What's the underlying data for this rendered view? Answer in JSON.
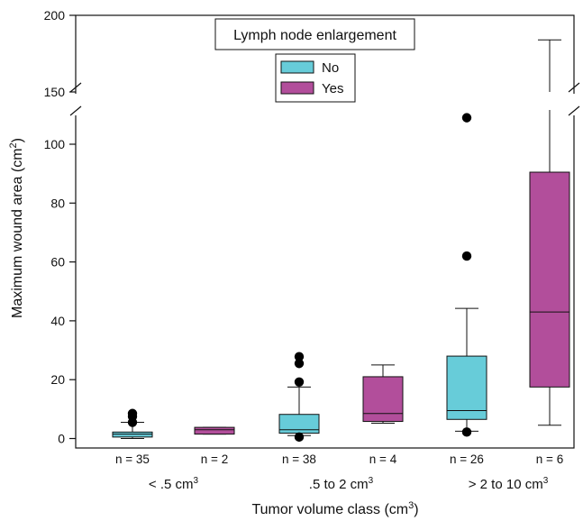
{
  "chart_data": {
    "type": "box",
    "title": "",
    "xlabel": "Tumor volume class (cm",
    "xlabel_sup": "3",
    "xlabel_end": ")",
    "ylabel": "Maximum wound area (cm",
    "ylabel_sup": "2",
    "ylabel_end": ")",
    "y_axis_break": {
      "lower_segment": [
        0,
        112
      ],
      "upper_segment": [
        148,
        200
      ]
    },
    "y_ticks": [
      0,
      20,
      40,
      60,
      80,
      100,
      150,
      200
    ],
    "legend": {
      "title": "Lymph node enlargement",
      "placement": "top-center",
      "entries": [
        {
          "name": "No",
          "color": "#67CCD9"
        },
        {
          "name": "Yes",
          "color": "#B24E9B"
        }
      ]
    },
    "groups": [
      {
        "label": "< .5 cm",
        "sup": "3"
      },
      {
        "label": ".5 to 2 cm",
        "sup": "3"
      },
      {
        "label": "> 2 to 10 cm",
        "sup": "3"
      }
    ],
    "boxes": [
      {
        "group": 0,
        "series": "No",
        "n_label": "n = 35",
        "whisker_low": 0,
        "q1": 0.5,
        "median": 1.5,
        "q3": 2.2,
        "whisker_high": 5.5,
        "outliers": [
          5.5,
          7.5,
          8.5
        ]
      },
      {
        "group": 0,
        "series": "Yes",
        "n_label": "n = 2",
        "whisker_low": 1.5,
        "q1": 1.5,
        "median": 3,
        "q3": 3.8,
        "whisker_high": 3.8,
        "outliers": []
      },
      {
        "group": 1,
        "series": "No",
        "n_label": "n = 38",
        "whisker_low": 1,
        "q1": 1.8,
        "median": 3,
        "q3": 8.2,
        "whisker_high": 17.5,
        "outliers": [
          0.5,
          19.2,
          25.5,
          27.8
        ]
      },
      {
        "group": 1,
        "series": "Yes",
        "n_label": "n = 4",
        "whisker_low": 5.2,
        "q1": 5.8,
        "median": 8.5,
        "q3": 21,
        "whisker_high": 25,
        "outliers": []
      },
      {
        "group": 2,
        "series": "No",
        "n_label": "n = 26",
        "whisker_low": 2.5,
        "q1": 6.5,
        "median": 9.5,
        "q3": 28,
        "whisker_high": 44.2,
        "outliers": [
          2.2,
          62,
          109
        ]
      },
      {
        "group": 2,
        "series": "Yes",
        "n_label": "n = 6",
        "whisker_low": 4.5,
        "q1": 17.5,
        "median": 43,
        "q3": 90.5,
        "whisker_high": 184,
        "outliers": []
      }
    ]
  }
}
